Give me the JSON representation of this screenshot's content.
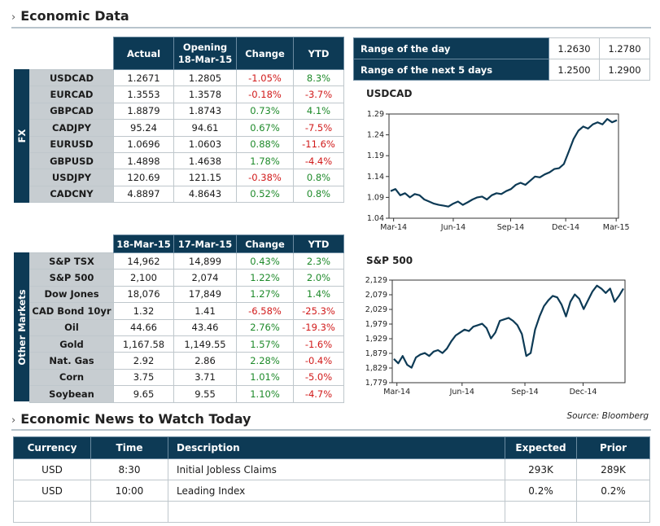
{
  "sections": {
    "economic_data": "Economic Data",
    "economic_news": "Economic News to Watch Today",
    "chevron": "›"
  },
  "fx": {
    "side_label": "FX",
    "headers": [
      "Actual",
      "Opening 18-Mar-15",
      "Change",
      "YTD"
    ],
    "rows": [
      {
        "label": "USDCAD",
        "actual": "1.2671",
        "opening": "1.2805",
        "change": "-1.05%",
        "ytd": "8.3%",
        "change_sign": "neg",
        "ytd_sign": "pos"
      },
      {
        "label": "EURCAD",
        "actual": "1.3553",
        "opening": "1.3578",
        "change": "-0.18%",
        "ytd": "-3.7%",
        "change_sign": "neg",
        "ytd_sign": "neg"
      },
      {
        "label": "GBPCAD",
        "actual": "1.8879",
        "opening": "1.8743",
        "change": "0.73%",
        "ytd": "4.1%",
        "change_sign": "pos",
        "ytd_sign": "pos"
      },
      {
        "label": "CADJPY",
        "actual": "95.24",
        "opening": "94.61",
        "change": "0.67%",
        "ytd": "-7.5%",
        "change_sign": "pos",
        "ytd_sign": "neg"
      },
      {
        "label": "EURUSD",
        "actual": "1.0696",
        "opening": "1.0603",
        "change": "0.88%",
        "ytd": "-11.6%",
        "change_sign": "pos",
        "ytd_sign": "neg"
      },
      {
        "label": "GBPUSD",
        "actual": "1.4898",
        "opening": "1.4638",
        "change": "1.78%",
        "ytd": "-4.4%",
        "change_sign": "pos",
        "ytd_sign": "neg"
      },
      {
        "label": "USDJPY",
        "actual": "120.69",
        "opening": "121.15",
        "change": "-0.38%",
        "ytd": "0.8%",
        "change_sign": "neg",
        "ytd_sign": "pos"
      },
      {
        "label": "CADCNY",
        "actual": "4.8897",
        "opening": "4.8643",
        "change": "0.52%",
        "ytd": "0.8%",
        "change_sign": "pos",
        "ytd_sign": "pos"
      }
    ]
  },
  "markets": {
    "side_label": "Other Markets",
    "headers": [
      "18-Mar-15",
      "17-Mar-15",
      "Change",
      "YTD"
    ],
    "rows": [
      {
        "label": "S&P TSX",
        "d1": "14,962",
        "d2": "14,899",
        "change": "0.43%",
        "ytd": "2.3%",
        "change_sign": "pos",
        "ytd_sign": "pos"
      },
      {
        "label": "S&P 500",
        "d1": "2,100",
        "d2": "2,074",
        "change": "1.22%",
        "ytd": "2.0%",
        "change_sign": "pos",
        "ytd_sign": "pos"
      },
      {
        "label": "Dow Jones",
        "d1": "18,076",
        "d2": "17,849",
        "change": "1.27%",
        "ytd": "1.4%",
        "change_sign": "pos",
        "ytd_sign": "pos"
      },
      {
        "label": "CAD Bond 10yr",
        "d1": "1.32",
        "d2": "1.41",
        "change": "-6.58%",
        "ytd": "-25.3%",
        "change_sign": "neg",
        "ytd_sign": "neg"
      },
      {
        "label": "Oil",
        "d1": "44.66",
        "d2": "43.46",
        "change": "2.76%",
        "ytd": "-19.3%",
        "change_sign": "pos",
        "ytd_sign": "neg"
      },
      {
        "label": "Gold",
        "d1": "1,167.58",
        "d2": "1,149.55",
        "change": "1.57%",
        "ytd": "-1.6%",
        "change_sign": "pos",
        "ytd_sign": "neg"
      },
      {
        "label": "Nat. Gas",
        "d1": "2.92",
        "d2": "2.86",
        "change": "2.28%",
        "ytd": "-0.4%",
        "change_sign": "pos",
        "ytd_sign": "neg"
      },
      {
        "label": "Corn",
        "d1": "3.75",
        "d2": "3.71",
        "change": "1.01%",
        "ytd": "-5.0%",
        "change_sign": "pos",
        "ytd_sign": "neg"
      },
      {
        "label": "Soybean",
        "d1": "9.65",
        "d2": "9.55",
        "change": "1.10%",
        "ytd": "-4.7%",
        "change_sign": "pos",
        "ytd_sign": "neg"
      }
    ]
  },
  "ranges": [
    {
      "label": "Range of the day",
      "low": "1.2630",
      "high": "1.2780"
    },
    {
      "label": "Range of the next 5 days",
      "low": "1.2500",
      "high": "1.2900"
    }
  ],
  "chart_data": [
    {
      "type": "line",
      "title": "USDCAD",
      "xlabel": "",
      "ylabel": "",
      "x_ticks": [
        "Mar-14",
        "Jun-14",
        "Sep-14",
        "Dec-14",
        "Mar-15"
      ],
      "y_ticks": [
        "1.04",
        "1.09",
        "1.14",
        "1.19",
        "1.24",
        "1.29"
      ],
      "ylim": [
        1.04,
        1.29
      ],
      "grid": false,
      "series": [
        {
          "values": [
            1.105,
            1.11,
            1.095,
            1.1,
            1.09,
            1.098,
            1.095,
            1.085,
            1.08,
            1.075,
            1.072,
            1.07,
            1.068,
            1.075,
            1.08,
            1.072,
            1.078,
            1.085,
            1.09,
            1.092,
            1.085,
            1.095,
            1.1,
            1.098,
            1.105,
            1.11,
            1.12,
            1.125,
            1.12,
            1.13,
            1.14,
            1.138,
            1.145,
            1.15,
            1.158,
            1.16,
            1.17,
            1.2,
            1.23,
            1.25,
            1.26,
            1.255,
            1.265,
            1.27,
            1.265,
            1.278,
            1.27,
            1.275
          ]
        }
      ]
    },
    {
      "type": "line",
      "title": "S&P 500",
      "xlabel": "",
      "ylabel": "",
      "x_ticks": [
        "Mar-14",
        "Jun-14",
        "Sep-14",
        "Dec-14"
      ],
      "y_ticks": [
        "1,779",
        "1,829",
        "1,879",
        "1,929",
        "1,979",
        "2,029",
        "2,079",
        "2,129"
      ],
      "ylim": [
        1779,
        2129
      ],
      "grid": false,
      "series": [
        {
          "values": [
            1860,
            1845,
            1870,
            1840,
            1830,
            1865,
            1875,
            1880,
            1870,
            1885,
            1890,
            1880,
            1895,
            1920,
            1940,
            1950,
            1960,
            1955,
            1970,
            1975,
            1980,
            1965,
            1930,
            1950,
            1990,
            1995,
            2000,
            1990,
            1975,
            1945,
            1870,
            1880,
            1960,
            2005,
            2040,
            2060,
            2075,
            2070,
            2045,
            2005,
            2055,
            2080,
            2065,
            2030,
            2060,
            2090,
            2110,
            2100,
            2085,
            2100,
            2055,
            2075,
            2100
          ]
        }
      ]
    }
  ],
  "source": "Source: Bloomberg",
  "news": {
    "headers": [
      "Currency",
      "Time",
      "Description",
      "Expected",
      "Prior"
    ],
    "rows": [
      {
        "currency": "USD",
        "time": "8:30",
        "description": "Initial Jobless Claims",
        "expected": "293K",
        "prior": "289K"
      },
      {
        "currency": "USD",
        "time": "10:00",
        "description": "Leading Index",
        "expected": "0.2%",
        "prior": "0.2%"
      },
      {
        "currency": "",
        "time": "",
        "description": "",
        "expected": "",
        "prior": ""
      }
    ]
  },
  "colors": {
    "header_navy": "#0d3a55",
    "label_gray": "#c7cdd1",
    "positive": "#1e8a2a",
    "negative": "#d11a1a"
  }
}
